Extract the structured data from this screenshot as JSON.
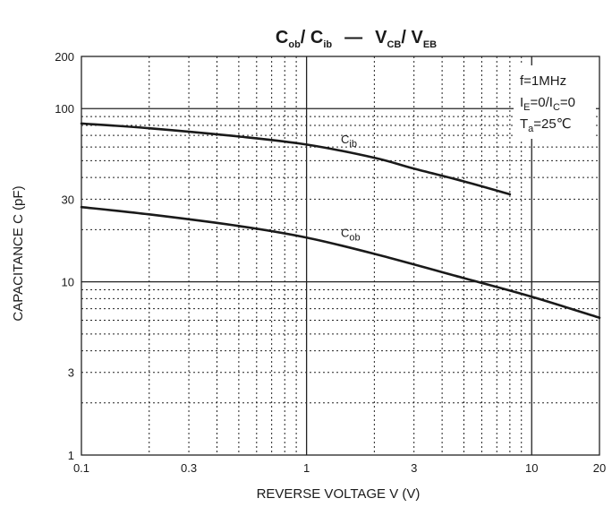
{
  "chart_data": {
    "type": "line",
    "title": {
      "left_main": "C",
      "left_sub": "ob",
      "sep1": "/ C",
      "left_sub2": "ib",
      "dash": "—",
      "right_main": "V",
      "right_sub": "CB",
      "sep2": "/ V",
      "right_sub2": "EB"
    },
    "xlabel": "REVERSE VOLTAGE    V    (V)",
    "ylabel": "CAPACITANCE    C    (pF)",
    "x_scale": "log",
    "y_scale": "log",
    "xlim": [
      0.1,
      20
    ],
    "ylim": [
      1,
      200
    ],
    "x_ticks": [
      {
        "value": 0.1,
        "label": "0.1"
      },
      {
        "value": 0.3,
        "label": "0.3"
      },
      {
        "value": 1,
        "label": "1"
      },
      {
        "value": 3,
        "label": "3"
      },
      {
        "value": 10,
        "label": "10"
      },
      {
        "value": 20,
        "label": "20"
      }
    ],
    "y_ticks": [
      {
        "value": 1,
        "label": "1"
      },
      {
        "value": 3,
        "label": "3"
      },
      {
        "value": 10,
        "label": "10"
      },
      {
        "value": 30,
        "label": "30"
      },
      {
        "value": 100,
        "label": "100"
      },
      {
        "value": 200,
        "label": "200"
      }
    ],
    "grid": true,
    "conditions": {
      "line1": "f=1MHz",
      "line2_a": "I",
      "line2_a_sub": "E",
      "line2_b": "=0/I",
      "line2_b_sub": "C",
      "line2_c": "=0",
      "line3_a": "T",
      "line3_a_sub": "a",
      "line3_b": "=25℃"
    },
    "series": [
      {
        "name": "C",
        "name_sub": "ib",
        "label_at": [
          1.1,
          66
        ],
        "points": [
          [
            0.1,
            82
          ],
          [
            0.2,
            77
          ],
          [
            0.5,
            69
          ],
          [
            1,
            62
          ],
          [
            2,
            52
          ],
          [
            3,
            45
          ],
          [
            5,
            38
          ],
          [
            8,
            32
          ]
        ]
      },
      {
        "name": "C",
        "name_sub": "ob",
        "label_at": [
          1.1,
          19
        ],
        "points": [
          [
            0.1,
            27
          ],
          [
            0.2,
            24.5
          ],
          [
            0.5,
            21
          ],
          [
            1,
            18
          ],
          [
            2,
            14.5
          ],
          [
            5,
            10.5
          ],
          [
            10,
            8.2
          ],
          [
            20,
            6.2
          ]
        ]
      }
    ]
  }
}
